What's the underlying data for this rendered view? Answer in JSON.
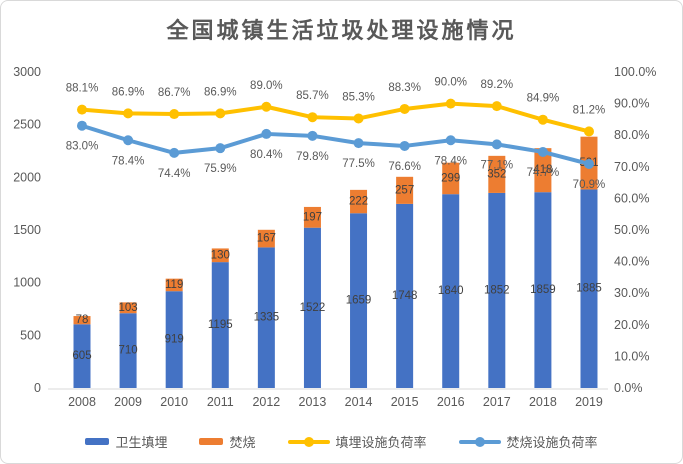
{
  "chart_data": {
    "type": "combo-bar-line",
    "title": "全国城镇生活垃圾处理设施情况",
    "stacked": true,
    "gridlines": false,
    "legend_position": "bottom",
    "categories": [
      "2008",
      "2009",
      "2010",
      "2011",
      "2012",
      "2013",
      "2014",
      "2015",
      "2016",
      "2017",
      "2018",
      "2019"
    ],
    "bar_series": [
      {
        "key": "sanitary-landfill",
        "name": "卫生填埋",
        "color": "#4472C4",
        "values": [
          605,
          710,
          919,
          1195,
          1335,
          1522,
          1659,
          1748,
          1840,
          1852,
          1859,
          1885
        ]
      },
      {
        "key": "incineration",
        "name": "焚烧",
        "color": "#ED7D31",
        "values": [
          78,
          103,
          119,
          130,
          167,
          197,
          222,
          257,
          299,
          352,
          418,
          501
        ]
      }
    ],
    "line_series": [
      {
        "key": "landfill-load-rate",
        "name": "填埋设施负荷率",
        "color": "#FFC000",
        "label_position": "above",
        "values": [
          88.1,
          86.9,
          86.7,
          86.9,
          89.0,
          85.7,
          85.3,
          88.3,
          90.0,
          89.2,
          84.9,
          81.2
        ]
      },
      {
        "key": "incineration-load-rate",
        "name": "焚烧设施负荷率",
        "color": "#5B9BD5",
        "label_position": "below",
        "values": [
          83.0,
          78.4,
          74.4,
          75.9,
          80.4,
          79.8,
          77.5,
          76.6,
          78.4,
          77.1,
          74.7,
          70.9
        ]
      }
    ],
    "left_axis": {
      "min": 0,
      "max": 3000,
      "ticks": [
        "0",
        "500",
        "1000",
        "1500",
        "2000",
        "2500",
        "3000"
      ]
    },
    "right_axis": {
      "min": 0,
      "max": 100,
      "ticks": [
        "0.0%",
        "10.0%",
        "20.0%",
        "30.0%",
        "40.0%",
        "50.0%",
        "60.0%",
        "70.0%",
        "80.0%",
        "90.0%",
        "100.0%"
      ]
    },
    "colors": {
      "tick_label": "#595959",
      "data_label": "#404040",
      "axis_line": "#d9d9d9",
      "title": "#595959"
    }
  }
}
